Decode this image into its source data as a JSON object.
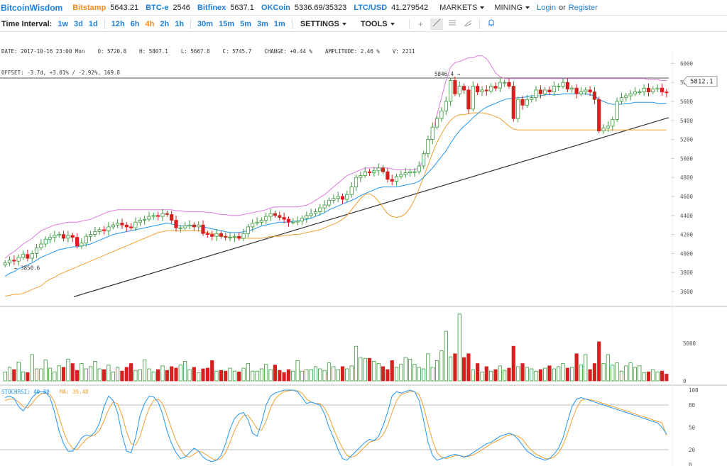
{
  "nav": {
    "brand": "BitcoinWisdom",
    "markets": [
      {
        "name": "Bitstamp",
        "price": "5643.21",
        "color": "orange"
      },
      {
        "name": "BTC-e",
        "price": "2546",
        "color": "blue"
      },
      {
        "name": "Bitfinex",
        "price": "5637.1",
        "color": "blue"
      },
      {
        "name": "OKCoin",
        "price": "5336.69/35323",
        "color": "blue"
      },
      {
        "name": "LTC/USD",
        "price": "41.279542",
        "color": "blue"
      }
    ],
    "markets_menu": "MARKETS",
    "mining_menu": "MINING",
    "login": "Login",
    "or": "or",
    "register": "Register"
  },
  "toolbar": {
    "label": "Time Interval:",
    "intervals": [
      "1w",
      "3d",
      "1d",
      "12h",
      "6h",
      "4h",
      "2h",
      "1h",
      "30m",
      "15m",
      "5m",
      "3m",
      "1m"
    ],
    "active_interval": "4h",
    "settings": "SETTINGS",
    "tools": "TOOLS",
    "tool_icons": [
      "plus-icon",
      "line-tool-icon",
      "horizontal-lines-icon",
      "brush-icon",
      "bell-icon"
    ]
  },
  "info": {
    "line1": "DATE: 2017-10-16 23:00 Mon    O: 5720.8    H: 5807.1    L: 5667.8    C: 5745.7    CHANGE: +0.44 %    AMPLITUDE: 2.46 %    V: 2211",
    "line2": "OFFSET: -3.7d, +3.01% / -2.92%, 169.8"
  },
  "chart_data": {
    "type": "candlestick",
    "price_axis": {
      "ticks": [
        "3600",
        "3800",
        "4000",
        "4200",
        "4400",
        "4600",
        "4800",
        "5000",
        "5200",
        "5400",
        "5600",
        "5800",
        "6000"
      ],
      "range": [
        3500,
        6100
      ]
    },
    "current_price_label": "5812.1",
    "high_marker": "5846.4",
    "low_marker": "3850.6",
    "closes": [
      3900,
      3930,
      3920,
      3960,
      3990,
      3950,
      4000,
      4060,
      4100,
      4150,
      4170,
      4190,
      4200,
      4160,
      4190,
      4170,
      4080,
      4110,
      4180,
      4200,
      4230,
      4250,
      4240,
      4280,
      4300,
      4320,
      4300,
      4280,
      4270,
      4330,
      4350,
      4360,
      4390,
      4400,
      4390,
      4420,
      4410,
      4350,
      4270,
      4270,
      4290,
      4300,
      4280,
      4300,
      4210,
      4200,
      4180,
      4210,
      4180,
      4170,
      4170,
      4180,
      4160,
      4210,
      4280,
      4320,
      4330,
      4350,
      4390,
      4420,
      4400,
      4380,
      4360,
      4330,
      4330,
      4340,
      4370,
      4400,
      4420,
      4440,
      4480,
      4510,
      4560,
      4580,
      4600,
      4570,
      4620,
      4700,
      4800,
      4820,
      4860,
      4850,
      4870,
      4900,
      4860,
      4780,
      4760,
      4810,
      4830,
      4850,
      4860,
      4860,
      4920,
      5050,
      5200,
      5330,
      5420,
      5500,
      5600,
      5820,
      5680,
      5760,
      5720,
      5520,
      5760,
      5700,
      5720,
      5710,
      5760,
      5740,
      5800,
      5800,
      5760,
      5420,
      5620,
      5560,
      5620,
      5640,
      5720,
      5680,
      5720,
      5700,
      5760,
      5760,
      5800,
      5730,
      5740,
      5680,
      5700,
      5720,
      5700,
      5620,
      5290,
      5320,
      5340,
      5410,
      5600,
      5640,
      5660,
      5680,
      5700,
      5700,
      5740,
      5700,
      5730,
      5740,
      5700,
      5690
    ],
    "sma": [
      3760,
      3790,
      3810,
      3840,
      3860,
      3880,
      3900,
      3930,
      3960,
      3980,
      4000,
      4020,
      4040,
      4050,
      4060,
      4070,
      4070,
      4080,
      4090,
      4100,
      4120,
      4140,
      4160,
      4180,
      4200,
      4210,
      4220,
      4230,
      4240,
      4250,
      4260,
      4270,
      4280,
      4290,
      4300,
      4310,
      4320,
      4310,
      4300,
      4290,
      4290,
      4290,
      4290,
      4290,
      4280,
      4270,
      4260,
      4250,
      4240,
      4230,
      4220,
      4220,
      4220,
      4230,
      4240,
      4250,
      4270,
      4290,
      4300,
      4310,
      4320,
      4330,
      4330,
      4330,
      4340,
      4340,
      4350,
      4360,
      4370,
      4390,
      4410,
      4430,
      4460,
      4480,
      4500,
      4520,
      4540,
      4560,
      4580,
      4610,
      4630,
      4650,
      4670,
      4690,
      4700,
      4700,
      4700,
      4700,
      4710,
      4720,
      4730,
      4740,
      4760,
      4800,
      4850,
      4900,
      4960,
      5020,
      5080,
      5160,
      5230,
      5290,
      5340,
      5380,
      5430,
      5470,
      5510,
      5540,
      5560,
      5580,
      5600,
      5620,
      5630,
      5630,
      5640,
      5640,
      5650,
      5660,
      5660,
      5660,
      5670,
      5670,
      5670,
      5670,
      5680,
      5680,
      5680,
      5680,
      5680,
      5680,
      5670,
      5660,
      5620,
      5600,
      5580,
      5570,
      5570,
      5570,
      5580,
      5580,
      5590,
      5590,
      5590,
      5590,
      5590,
      5580,
      5580,
      5580
    ],
    "upper_band": [
      3950,
      3990,
      4020,
      4060,
      4100,
      4130,
      4160,
      4200,
      4240,
      4260,
      4280,
      4300,
      4310,
      4320,
      4330,
      4330,
      4330,
      4340,
      4350,
      4360,
      4380,
      4400,
      4420,
      4440,
      4450,
      4460,
      4460,
      4460,
      4460,
      4460,
      4460,
      4460,
      4460,
      4460,
      4460,
      4460,
      4460,
      4460,
      4450,
      4450,
      4440,
      4440,
      4440,
      4440,
      4440,
      4430,
      4430,
      4420,
      4410,
      4410,
      4400,
      4400,
      4400,
      4410,
      4420,
      4430,
      4440,
      4450,
      4460,
      4480,
      4490,
      4490,
      4490,
      4490,
      4490,
      4490,
      4500,
      4510,
      4530,
      4560,
      4590,
      4620,
      4660,
      4700,
      4740,
      4780,
      4820,
      4840,
      4860,
      4880,
      4900,
      4900,
      4900,
      4900,
      4900,
      4900,
      4890,
      4880,
      4880,
      4880,
      4880,
      4880,
      4900,
      4990,
      5120,
      5280,
      5460,
      5640,
      5820,
      5960,
      6010,
      6020,
      6040,
      6060,
      6060,
      6080,
      6080,
      6050,
      5980,
      5900,
      5860,
      5840,
      5840,
      5840,
      5840,
      5840,
      5840,
      5840,
      5840,
      5840,
      5840,
      5840,
      5840,
      5840,
      5840,
      5840,
      5840,
      5840,
      5840,
      5840,
      5840,
      5840,
      5840,
      5840,
      5840,
      5840,
      5840,
      5840,
      5840,
      5840,
      5840,
      5840,
      5840,
      5830,
      5830,
      5830,
      5820,
      5820
    ],
    "lower_band": [
      3550,
      3560,
      3570,
      3570,
      3580,
      3600,
      3620,
      3640,
      3660,
      3700,
      3730,
      3750,
      3780,
      3800,
      3820,
      3840,
      3860,
      3880,
      3900,
      3920,
      3940,
      3960,
      3980,
      4000,
      4020,
      4040,
      4060,
      4080,
      4100,
      4120,
      4140,
      4160,
      4180,
      4200,
      4220,
      4230,
      4240,
      4240,
      4240,
      4240,
      4240,
      4240,
      4240,
      4240,
      4230,
      4220,
      4210,
      4200,
      4190,
      4180,
      4170,
      4170,
      4160,
      4160,
      4160,
      4160,
      4160,
      4160,
      4170,
      4180,
      4180,
      4180,
      4190,
      4190,
      4200,
      4200,
      4210,
      4220,
      4230,
      4240,
      4250,
      4270,
      4290,
      4310,
      4330,
      4360,
      4400,
      4460,
      4520,
      4580,
      4620,
      4630,
      4600,
      4550,
      4480,
      4420,
      4390,
      4380,
      4390,
      4420,
      4480,
      4570,
      4680,
      4800,
      4930,
      5060,
      5170,
      5260,
      5340,
      5400,
      5440,
      5460,
      5460,
      5470,
      5480,
      5480,
      5480,
      5470,
      5460,
      5440,
      5420,
      5380,
      5340,
      5310,
      5300,
      5300,
      5300,
      5300,
      5300,
      5300,
      5300,
      5300,
      5300,
      5300,
      5300,
      5300,
      5300,
      5300,
      5300,
      5300,
      5300,
      5300,
      5300,
      5300,
      5300,
      5300,
      5300,
      5300,
      5300,
      5300,
      5300,
      5300,
      5300,
      5300,
      5300,
      5300,
      5300,
      5300
    ],
    "trendlines": [
      {
        "from": [
          104,
          3545
        ],
        "to": [
          942,
          5430
        ]
      },
      {
        "from": [
          0,
          5846
        ],
        "to": [
          942,
          5846
        ]
      }
    ],
    "volume": {
      "ticks": [
        "5000",
        "0"
      ],
      "values": [
        1200,
        1800,
        1500,
        2500,
        1200,
        1100,
        3500,
        1600,
        1600,
        2800,
        1700,
        1200,
        2000,
        1800,
        2900,
        2300,
        1400,
        2300,
        1600,
        1900,
        2600,
        1600,
        1500,
        2100,
        1200,
        1800,
        1300,
        1800,
        2300,
        1400,
        1500,
        2800,
        1600,
        1200,
        1500,
        2000,
        1400,
        1900,
        1700,
        2100,
        2600,
        1500,
        1800,
        1100,
        1600,
        1700,
        2700,
        1300,
        1400,
        1300,
        1700,
        1300,
        1200,
        1700,
        2300,
        1300,
        1300,
        1600,
        2200,
        1500,
        2100,
        1400,
        1100,
        1500,
        1300,
        2700,
        1300,
        1500,
        1500,
        1900,
        1600,
        1400,
        2400,
        1900,
        1500,
        1900,
        1600,
        2000,
        4600,
        3100,
        3000,
        3000,
        2600,
        2300,
        1900,
        1500,
        2700,
        1800,
        2200,
        3100,
        2900,
        2200,
        1800,
        1600,
        3600,
        1800,
        2700,
        4000,
        6600,
        3200,
        3600,
        8900,
        3100,
        3600,
        1500,
        2300,
        1200,
        1900,
        1300,
        1500,
        2000,
        1400,
        1700,
        4600,
        1900,
        2300,
        1800,
        1600,
        1300,
        1500,
        1700,
        2000,
        1600,
        1900,
        2300,
        1700,
        1800,
        3600,
        2100,
        3500,
        1500,
        2300,
        5200,
        2300,
        3500,
        2100,
        2400,
        1300,
        2000,
        2400,
        1800,
        2000,
        1100,
        1200,
        1500,
        1200,
        1300,
        900
      ]
    },
    "stochrsi": {
      "label": "STOCHRSI: 40.88",
      "ma_label": "MA: 39.48",
      "ticks": [
        "100",
        "80",
        "50",
        "20",
        "0"
      ],
      "k": [
        90,
        92,
        89,
        78,
        72,
        80,
        90,
        96,
        98,
        97,
        90,
        70,
        45,
        28,
        18,
        18,
        26,
        36,
        40,
        38,
        44,
        56,
        78,
        92,
        86,
        70,
        40,
        18,
        16,
        36,
        66,
        82,
        92,
        91,
        84,
        68,
        45,
        28,
        16,
        8,
        10,
        16,
        22,
        18,
        10,
        6,
        4,
        6,
        12,
        28,
        48,
        62,
        68,
        70,
        60,
        42,
        38,
        56,
        80,
        92,
        96,
        98,
        100,
        100,
        100,
        98,
        90,
        82,
        84,
        82,
        80,
        68,
        50,
        36,
        20,
        8,
        6,
        12,
        18,
        24,
        30,
        34,
        32,
        38,
        52,
        70,
        92,
        98,
        96,
        98,
        100,
        98,
        86,
        60,
        30,
        12,
        6,
        8,
        10,
        12,
        14,
        12,
        10,
        12,
        16,
        20,
        24,
        28,
        30,
        34,
        38,
        40,
        42,
        40,
        34,
        26,
        18,
        14,
        10,
        8,
        6,
        8,
        14,
        22,
        36,
        58,
        78,
        88,
        90,
        88,
        86,
        84,
        82,
        80,
        78,
        76,
        74,
        72,
        70,
        68,
        66,
        64,
        62,
        60,
        58,
        56,
        50,
        41
      ],
      "d": [
        86,
        88,
        88,
        84,
        78,
        76,
        82,
        90,
        95,
        96,
        94,
        84,
        64,
        44,
        30,
        22,
        20,
        27,
        34,
        38,
        40,
        46,
        59,
        74,
        84,
        82,
        66,
        44,
        28,
        26,
        38,
        58,
        76,
        86,
        88,
        82,
        66,
        48,
        32,
        20,
        12,
        10,
        14,
        18,
        16,
        12,
        8,
        6,
        8,
        16,
        30,
        46,
        58,
        66,
        66,
        58,
        48,
        46,
        58,
        76,
        88,
        94,
        98,
        99,
        100,
        99,
        96,
        88,
        84,
        82,
        82,
        76,
        64,
        48,
        34,
        22,
        12,
        10,
        12,
        18,
        24,
        30,
        32,
        34,
        40,
        52,
        70,
        86,
        94,
        96,
        98,
        98,
        94,
        78,
        54,
        32,
        16,
        10,
        8,
        10,
        12,
        12,
        11,
        11,
        13,
        16,
        20,
        24,
        28,
        31,
        34,
        37,
        40,
        40,
        38,
        34,
        26,
        19,
        14,
        11,
        8,
        8,
        10,
        16,
        26,
        42,
        60,
        76,
        86,
        88,
        87,
        86,
        84,
        82,
        80,
        78,
        76,
        74,
        72,
        70,
        68,
        66,
        64,
        62,
        60,
        58,
        56,
        39
      ]
    }
  }
}
